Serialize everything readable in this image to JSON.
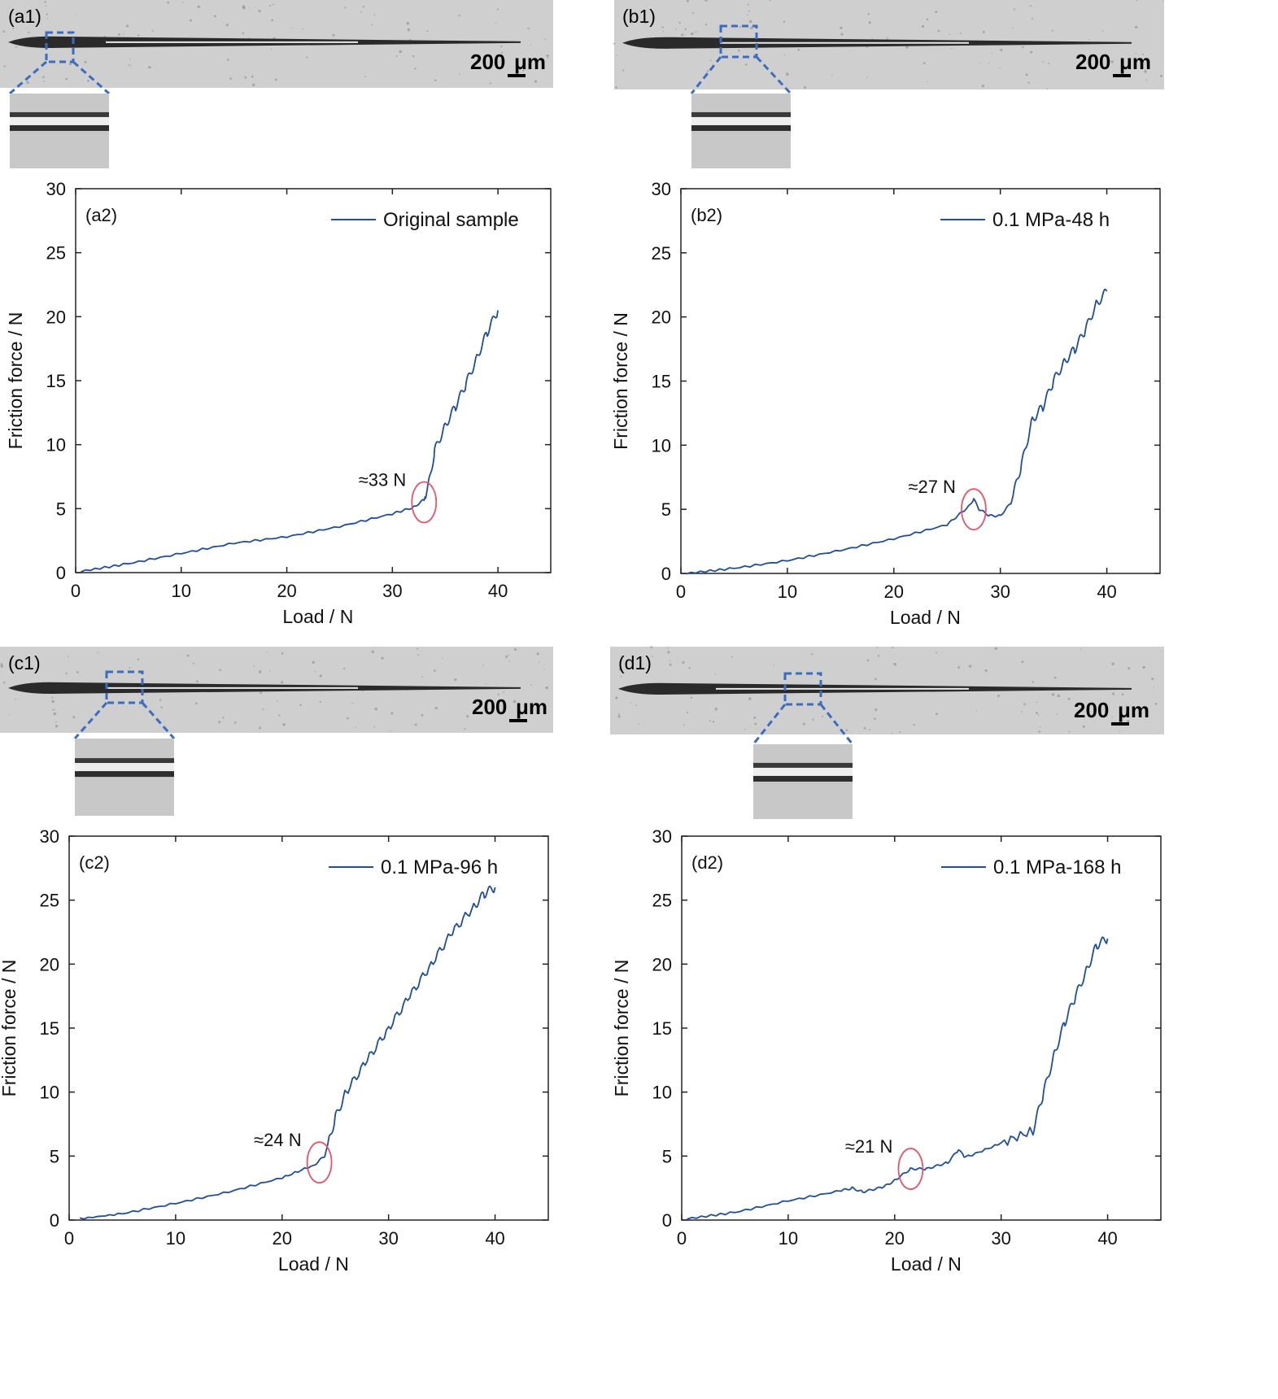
{
  "colors": {
    "series": "#1f4e9b",
    "highlight": "#e8546a",
    "zoom_box": "#3b6cc0",
    "micrograph_bg": "#cfcfcf",
    "scratch": "#2a2a2a"
  },
  "micrographs": [
    {
      "label": "(a1)",
      "scale_value": "200",
      "scale_unit": "μm"
    },
    {
      "label": "(b1)",
      "scale_value": "200",
      "scale_unit": "μm"
    },
    {
      "label": "(c1)",
      "scale_value": "200",
      "scale_unit": "μm"
    },
    {
      "label": "(d1)",
      "scale_value": "200",
      "scale_unit": "μm"
    }
  ],
  "chart_data": [
    {
      "type": "line",
      "panel_label": "(a2)",
      "xlabel": "Load / N",
      "ylabel": "Friction force / N",
      "xlim": [
        0,
        45
      ],
      "ylim": [
        0,
        30
      ],
      "xticks": [
        0,
        10,
        20,
        30,
        40
      ],
      "yticks": [
        0,
        5,
        10,
        15,
        20,
        25,
        30
      ],
      "legend_position": "top-right",
      "series": [
        {
          "name": "Original sample",
          "x": [
            0.5,
            5,
            10,
            15,
            20,
            25,
            30,
            32,
            33,
            33.5,
            34,
            35,
            36,
            37,
            38,
            39,
            40
          ],
          "y": [
            0.1,
            0.7,
            1.5,
            2.3,
            2.8,
            3.6,
            4.6,
            5.1,
            5.7,
            7.2,
            9.5,
            11.5,
            13.0,
            14.8,
            16.8,
            18.8,
            20.5
          ]
        }
      ],
      "annotation": {
        "text": "≈33 N",
        "x": 33,
        "y": 5.5
      }
    },
    {
      "type": "line",
      "panel_label": "(b2)",
      "xlabel": "Load / N",
      "ylabel": "Friction force / N",
      "xlim": [
        0,
        45
      ],
      "ylim": [
        0,
        30
      ],
      "xticks": [
        0,
        10,
        20,
        30,
        40
      ],
      "yticks": [
        0,
        5,
        10,
        15,
        20,
        25,
        30
      ],
      "legend_position": "top-right",
      "series": [
        {
          "name": "0.1 MPa-48 h",
          "x": [
            0.5,
            5,
            10,
            15,
            20,
            25,
            27,
            27.5,
            28,
            29,
            30,
            31,
            32,
            33,
            34,
            35,
            36,
            37,
            38,
            39,
            40
          ],
          "y": [
            0,
            0.4,
            1.0,
            1.8,
            2.7,
            3.8,
            5.2,
            5.8,
            5.0,
            4.5,
            4.5,
            5.5,
            8.5,
            12.0,
            13.0,
            15.0,
            16.5,
            17.5,
            19.0,
            21.0,
            22.0
          ]
        }
      ],
      "annotation": {
        "text": "≈27 N",
        "x": 27.5,
        "y": 5
      }
    },
    {
      "type": "line",
      "panel_label": "(c2)",
      "xlabel": "Load / N",
      "ylabel": "Friction force / N",
      "xlim": [
        0,
        45
      ],
      "ylim": [
        0,
        30
      ],
      "xticks": [
        0,
        10,
        20,
        30,
        40
      ],
      "yticks": [
        0,
        5,
        10,
        15,
        20,
        25,
        30
      ],
      "legend_position": "top-right",
      "series": [
        {
          "name": "0.1 MPa-96 h",
          "x": [
            1,
            5,
            10,
            15,
            20,
            23,
            24,
            25,
            26,
            28,
            30,
            32,
            34,
            36,
            38,
            39,
            40
          ],
          "y": [
            0.1,
            0.5,
            1.3,
            2.2,
            3.3,
            4.3,
            5.0,
            8.0,
            10.0,
            12.5,
            15.0,
            17.5,
            20.0,
            22.5,
            24.5,
            25.5,
            26.0
          ]
        }
      ],
      "annotation": {
        "text": "≈24 N",
        "x": 23.5,
        "y": 4.5
      }
    },
    {
      "type": "line",
      "panel_label": "(d2)",
      "xlabel": "Load / N",
      "ylabel": "Friction force / N",
      "xlim": [
        0,
        45
      ],
      "ylim": [
        0,
        30
      ],
      "xticks": [
        0,
        10,
        20,
        30,
        40
      ],
      "yticks": [
        0,
        5,
        10,
        15,
        20,
        25,
        30
      ],
      "legend_position": "top-right",
      "series": [
        {
          "name": "0.1 MPa-168 h",
          "x": [
            0.5,
            5,
            10,
            15,
            16,
            17,
            19,
            20,
            21.5,
            23,
            25,
            26,
            26.5,
            27,
            30,
            33,
            34,
            35,
            36,
            37,
            38,
            39,
            40
          ],
          "y": [
            0.1,
            0.6,
            1.5,
            2.3,
            2.5,
            2.2,
            2.6,
            3.1,
            4.0,
            4.0,
            4.5,
            5.5,
            5.0,
            5.0,
            6.0,
            7.0,
            10.0,
            13.0,
            15.5,
            17.5,
            19.5,
            21.5,
            22.0
          ]
        }
      ],
      "annotation": {
        "text": "≈21 N",
        "x": 21.5,
        "y": 4
      }
    }
  ]
}
